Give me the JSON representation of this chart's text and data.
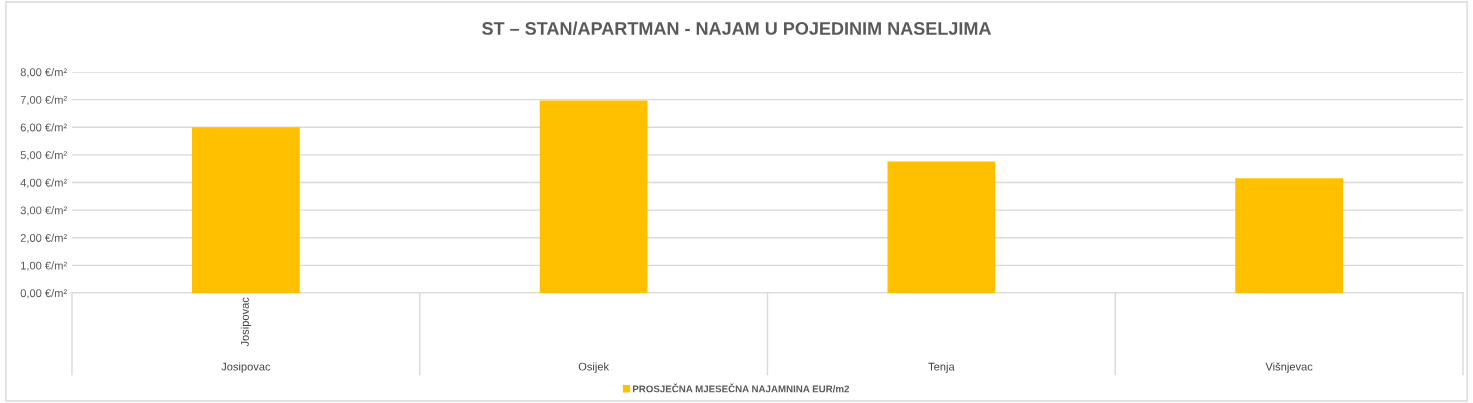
{
  "chart_data": {
    "type": "bar",
    "title": "ST – STAN/APARTMAN - NAJAM U POJEDINIM NASELJIMA",
    "categories": [
      "Josipovac",
      "Osijek",
      "Tenja",
      "Višnjevac"
    ],
    "series": [
      {
        "name": "PROSJEČNA MJESEČNA NAJAMNINA EUR/m2",
        "color": "#ffc000",
        "values": [
          6.0,
          6.97,
          4.76,
          4.15
        ]
      }
    ],
    "ylim": [
      0,
      8
    ],
    "yticks": [
      {
        "value": 0,
        "label": "0,00 €/m²"
      },
      {
        "value": 1,
        "label": "1,00 €/m²"
      },
      {
        "value": 2,
        "label": "2,00 €/m²"
      },
      {
        "value": 3,
        "label": "3,00 €/m²"
      },
      {
        "value": 4,
        "label": "4,00 €/m²"
      },
      {
        "value": 5,
        "label": "5,00 €/m²"
      },
      {
        "value": 6,
        "label": "6,00 €/m²"
      },
      {
        "value": 7,
        "label": "7,00 €/m²"
      },
      {
        "value": 8,
        "label": "8,00 €/m²"
      }
    ],
    "annotations": [
      "Josipovac"
    ],
    "grid": "y",
    "legend": "bottom"
  }
}
